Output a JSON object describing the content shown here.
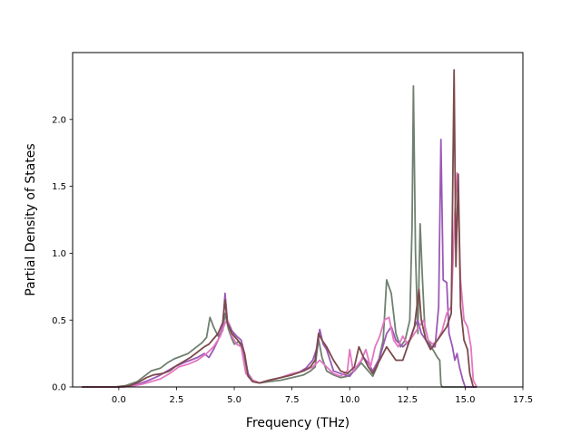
{
  "chart_data": {
    "type": "line",
    "title": "",
    "xlabel": "Frequency (THz)",
    "ylabel": "Partial Density of States",
    "xlim": [
      -2.0,
      17.5
    ],
    "ylim": [
      0.0,
      2.5
    ],
    "xticks": [
      0.0,
      2.5,
      5.0,
      7.5,
      10.0,
      12.5,
      15.0,
      17.5
    ],
    "xtick_labels": [
      "0.0",
      "2.5",
      "5.0",
      "7.5",
      "10.0",
      "12.5",
      "15.0",
      "17.5"
    ],
    "yticks": [
      0.0,
      0.5,
      1.0,
      1.5,
      2.0
    ],
    "ytick_labels": [
      "0.0",
      "0.5",
      "1.0",
      "1.5",
      "2.0"
    ],
    "grid": false,
    "legend": "none",
    "series": [
      {
        "color": "#708070",
        "points": [
          [
            -1.6,
            0
          ],
          [
            -0.2,
            0
          ],
          [
            0.3,
            0.01
          ],
          [
            0.8,
            0.04
          ],
          [
            1.1,
            0.08
          ],
          [
            1.4,
            0.12
          ],
          [
            1.8,
            0.14
          ],
          [
            2.1,
            0.18
          ],
          [
            2.4,
            0.21
          ],
          [
            2.7,
            0.23
          ],
          [
            3.0,
            0.25
          ],
          [
            3.3,
            0.29
          ],
          [
            3.6,
            0.33
          ],
          [
            3.8,
            0.37
          ],
          [
            3.95,
            0.52
          ],
          [
            4.1,
            0.45
          ],
          [
            4.3,
            0.38
          ],
          [
            4.5,
            0.42
          ],
          [
            4.6,
            0.55
          ],
          [
            4.75,
            0.43
          ],
          [
            4.9,
            0.36
          ],
          [
            5.0,
            0.32
          ],
          [
            5.2,
            0.34
          ],
          [
            5.35,
            0.28
          ],
          [
            5.6,
            0.08
          ],
          [
            5.8,
            0.04
          ],
          [
            6.1,
            0.03
          ],
          [
            6.5,
            0.04
          ],
          [
            7.0,
            0.05
          ],
          [
            7.5,
            0.07
          ],
          [
            8.0,
            0.09
          ],
          [
            8.3,
            0.12
          ],
          [
            8.5,
            0.15
          ],
          [
            8.65,
            0.36
          ],
          [
            8.8,
            0.22
          ],
          [
            9.0,
            0.12
          ],
          [
            9.3,
            0.09
          ],
          [
            9.6,
            0.07
          ],
          [
            9.9,
            0.08
          ],
          [
            10.2,
            0.12
          ],
          [
            10.5,
            0.18
          ],
          [
            10.8,
            0.12
          ],
          [
            11.0,
            0.08
          ],
          [
            11.2,
            0.16
          ],
          [
            11.45,
            0.35
          ],
          [
            11.6,
            0.8
          ],
          [
            11.8,
            0.7
          ],
          [
            12.0,
            0.4
          ],
          [
            12.2,
            0.3
          ],
          [
            12.4,
            0.35
          ],
          [
            12.6,
            0.5
          ],
          [
            12.7,
            1.2
          ],
          [
            12.76,
            2.25
          ],
          [
            12.85,
            1.0
          ],
          [
            12.95,
            0.4
          ],
          [
            13.05,
            1.22
          ],
          [
            13.15,
            0.8
          ],
          [
            13.25,
            0.45
          ],
          [
            13.4,
            0.35
          ],
          [
            13.6,
            0.28
          ],
          [
            13.8,
            0.22
          ],
          [
            13.9,
            0.2
          ],
          [
            13.95,
            0.02
          ],
          [
            14.0,
            0.0
          ],
          [
            15.5,
            0.0
          ]
        ]
      },
      {
        "color": "#9b59b6",
        "points": [
          [
            -1.6,
            0
          ],
          [
            0.2,
            0
          ],
          [
            0.6,
            0.01
          ],
          [
            1.0,
            0.03
          ],
          [
            1.3,
            0.05
          ],
          [
            1.7,
            0.08
          ],
          [
            2.0,
            0.11
          ],
          [
            2.4,
            0.15
          ],
          [
            2.8,
            0.18
          ],
          [
            3.1,
            0.2
          ],
          [
            3.4,
            0.22
          ],
          [
            3.7,
            0.25
          ],
          [
            3.9,
            0.22
          ],
          [
            4.1,
            0.28
          ],
          [
            4.3,
            0.35
          ],
          [
            4.5,
            0.45
          ],
          [
            4.6,
            0.7
          ],
          [
            4.7,
            0.5
          ],
          [
            4.9,
            0.42
          ],
          [
            5.1,
            0.38
          ],
          [
            5.3,
            0.35
          ],
          [
            5.4,
            0.28
          ],
          [
            5.6,
            0.1
          ],
          [
            5.8,
            0.05
          ],
          [
            6.1,
            0.03
          ],
          [
            6.5,
            0.05
          ],
          [
            7.0,
            0.07
          ],
          [
            7.5,
            0.09
          ],
          [
            7.8,
            0.11
          ],
          [
            8.1,
            0.14
          ],
          [
            8.4,
            0.2
          ],
          [
            8.6,
            0.3
          ],
          [
            8.7,
            0.43
          ],
          [
            8.85,
            0.32
          ],
          [
            9.0,
            0.28
          ],
          [
            9.3,
            0.12
          ],
          [
            9.6,
            0.1
          ],
          [
            10.0,
            0.08
          ],
          [
            10.3,
            0.15
          ],
          [
            10.6,
            0.22
          ],
          [
            10.8,
            0.18
          ],
          [
            11.0,
            0.12
          ],
          [
            11.3,
            0.22
          ],
          [
            11.6,
            0.4
          ],
          [
            11.8,
            0.45
          ],
          [
            12.0,
            0.35
          ],
          [
            12.3,
            0.3
          ],
          [
            12.6,
            0.35
          ],
          [
            12.8,
            0.45
          ],
          [
            12.95,
            0.5
          ],
          [
            13.1,
            0.4
          ],
          [
            13.3,
            0.35
          ],
          [
            13.5,
            0.3
          ],
          [
            13.7,
            0.3
          ],
          [
            13.85,
            0.6
          ],
          [
            13.95,
            1.85
          ],
          [
            14.05,
            0.8
          ],
          [
            14.2,
            0.78
          ],
          [
            14.3,
            0.4
          ],
          [
            14.45,
            0.3
          ],
          [
            14.55,
            0.2
          ],
          [
            14.65,
            0.25
          ],
          [
            14.75,
            0.15
          ],
          [
            14.9,
            0.05
          ],
          [
            15.0,
            0.0
          ],
          [
            15.5,
            0.0
          ]
        ]
      },
      {
        "color": "#e377c2",
        "points": [
          [
            -1.6,
            0
          ],
          [
            0.2,
            0
          ],
          [
            0.7,
            0.01
          ],
          [
            1.0,
            0.02
          ],
          [
            1.4,
            0.04
          ],
          [
            1.8,
            0.06
          ],
          [
            2.2,
            0.1
          ],
          [
            2.6,
            0.15
          ],
          [
            3.0,
            0.17
          ],
          [
            3.4,
            0.2
          ],
          [
            3.8,
            0.25
          ],
          [
            4.1,
            0.3
          ],
          [
            4.4,
            0.38
          ],
          [
            4.6,
            0.48
          ],
          [
            4.7,
            0.5
          ],
          [
            4.9,
            0.38
          ],
          [
            5.1,
            0.32
          ],
          [
            5.3,
            0.3
          ],
          [
            5.5,
            0.1
          ],
          [
            5.8,
            0.05
          ],
          [
            6.1,
            0.03
          ],
          [
            6.5,
            0.05
          ],
          [
            7.0,
            0.07
          ],
          [
            7.5,
            0.1
          ],
          [
            8.0,
            0.12
          ],
          [
            8.4,
            0.15
          ],
          [
            8.7,
            0.2
          ],
          [
            9.0,
            0.15
          ],
          [
            9.3,
            0.1
          ],
          [
            9.6,
            0.08
          ],
          [
            9.9,
            0.12
          ],
          [
            10.0,
            0.28
          ],
          [
            10.15,
            0.12
          ],
          [
            10.5,
            0.2
          ],
          [
            10.7,
            0.28
          ],
          [
            10.9,
            0.15
          ],
          [
            11.1,
            0.3
          ],
          [
            11.3,
            0.38
          ],
          [
            11.5,
            0.5
          ],
          [
            11.7,
            0.52
          ],
          [
            11.9,
            0.35
          ],
          [
            12.1,
            0.3
          ],
          [
            12.3,
            0.38
          ],
          [
            12.5,
            0.32
          ],
          [
            12.8,
            0.4
          ],
          [
            13.0,
            0.45
          ],
          [
            13.2,
            0.5
          ],
          [
            13.4,
            0.35
          ],
          [
            13.6,
            0.32
          ],
          [
            13.8,
            0.35
          ],
          [
            14.0,
            0.42
          ],
          [
            14.2,
            0.55
          ],
          [
            14.4,
            0.6
          ],
          [
            14.55,
            1.3
          ],
          [
            14.65,
            1.6
          ],
          [
            14.72,
            1.27
          ],
          [
            14.8,
            0.8
          ],
          [
            14.95,
            0.5
          ],
          [
            15.1,
            0.45
          ],
          [
            15.25,
            0.3
          ],
          [
            15.35,
            0.05
          ],
          [
            15.5,
            0.0
          ]
        ]
      },
      {
        "color": "#7b4a4a",
        "points": [
          [
            -1.6,
            0
          ],
          [
            0.0,
            0
          ],
          [
            0.5,
            0.01
          ],
          [
            0.9,
            0.04
          ],
          [
            1.2,
            0.07
          ],
          [
            1.5,
            0.09
          ],
          [
            1.9,
            0.1
          ],
          [
            2.2,
            0.12
          ],
          [
            2.5,
            0.16
          ],
          [
            2.8,
            0.19
          ],
          [
            3.1,
            0.22
          ],
          [
            3.4,
            0.26
          ],
          [
            3.7,
            0.3
          ],
          [
            3.9,
            0.32
          ],
          [
            4.1,
            0.36
          ],
          [
            4.3,
            0.4
          ],
          [
            4.5,
            0.48
          ],
          [
            4.6,
            0.65
          ],
          [
            4.7,
            0.48
          ],
          [
            4.9,
            0.4
          ],
          [
            5.1,
            0.36
          ],
          [
            5.3,
            0.32
          ],
          [
            5.45,
            0.25
          ],
          [
            5.6,
            0.08
          ],
          [
            5.8,
            0.04
          ],
          [
            6.1,
            0.03
          ],
          [
            6.5,
            0.05
          ],
          [
            7.0,
            0.07
          ],
          [
            7.5,
            0.09
          ],
          [
            8.0,
            0.12
          ],
          [
            8.3,
            0.15
          ],
          [
            8.5,
            0.2
          ],
          [
            8.65,
            0.4
          ],
          [
            8.8,
            0.35
          ],
          [
            9.0,
            0.3
          ],
          [
            9.3,
            0.2
          ],
          [
            9.6,
            0.12
          ],
          [
            9.9,
            0.1
          ],
          [
            10.2,
            0.15
          ],
          [
            10.4,
            0.3
          ],
          [
            10.6,
            0.22
          ],
          [
            10.8,
            0.15
          ],
          [
            11.0,
            0.1
          ],
          [
            11.3,
            0.2
          ],
          [
            11.6,
            0.3
          ],
          [
            11.8,
            0.25
          ],
          [
            12.0,
            0.2
          ],
          [
            12.3,
            0.2
          ],
          [
            12.5,
            0.3
          ],
          [
            12.8,
            0.45
          ],
          [
            13.0,
            0.73
          ],
          [
            13.1,
            0.5
          ],
          [
            13.3,
            0.35
          ],
          [
            13.5,
            0.28
          ],
          [
            13.8,
            0.35
          ],
          [
            14.0,
            0.4
          ],
          [
            14.2,
            0.45
          ],
          [
            14.4,
            0.55
          ],
          [
            14.52,
            2.37
          ],
          [
            14.6,
            0.9
          ],
          [
            14.7,
            1.59
          ],
          [
            14.8,
            0.6
          ],
          [
            14.95,
            0.35
          ],
          [
            15.1,
            0.28
          ],
          [
            15.2,
            0.1
          ],
          [
            15.35,
            0.0
          ],
          [
            15.5,
            0.0
          ]
        ]
      }
    ]
  }
}
